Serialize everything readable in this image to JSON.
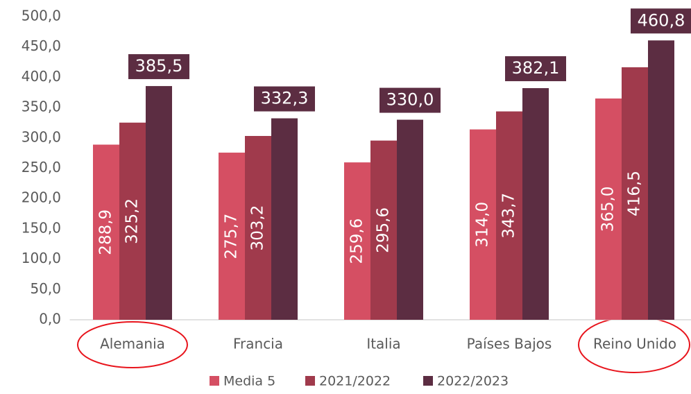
{
  "chart_data": {
    "type": "bar",
    "categories": [
      "Alemania",
      "Francia",
      "Italia",
      "Países Bajos",
      "Reino Unido"
    ],
    "series": [
      {
        "name": "Media 5",
        "color": "#d54f63",
        "values": [
          288.9,
          275.7,
          259.6,
          314.0,
          365.0
        ],
        "value_labels": [
          "288,9",
          "275,7",
          "259,6",
          "314,0",
          "365,0"
        ]
      },
      {
        "name": "2021/2022",
        "color": "#a03a4c",
        "values": [
          325.2,
          303.2,
          295.6,
          343.7,
          416.5
        ],
        "value_labels": [
          "325,2",
          "303,2",
          "295,6",
          "343,7",
          "416,5"
        ]
      },
      {
        "name": "2022/2023",
        "color": "#5c2d42",
        "values": [
          385.5,
          332.3,
          330.0,
          382.1,
          460.8
        ],
        "value_labels": [
          "385,5",
          "332,3",
          "330,0",
          "382,1",
          "460,8"
        ]
      }
    ],
    "ylim": [
      0,
      500
    ],
    "yticks": [
      {
        "value": 0,
        "label": "0,0"
      },
      {
        "value": 50,
        "label": "50,0"
      },
      {
        "value": 100,
        "label": "100,0"
      },
      {
        "value": 150,
        "label": "150,0"
      },
      {
        "value": 200,
        "label": "200,0"
      },
      {
        "value": 250,
        "label": "250,0"
      },
      {
        "value": 300,
        "label": "300,0"
      },
      {
        "value": 350,
        "label": "350,0"
      },
      {
        "value": 400,
        "label": "400,0"
      },
      {
        "value": 450,
        "label": "450,0"
      },
      {
        "value": 500,
        "label": "500,0"
      }
    ],
    "legend": "bottom"
  }
}
